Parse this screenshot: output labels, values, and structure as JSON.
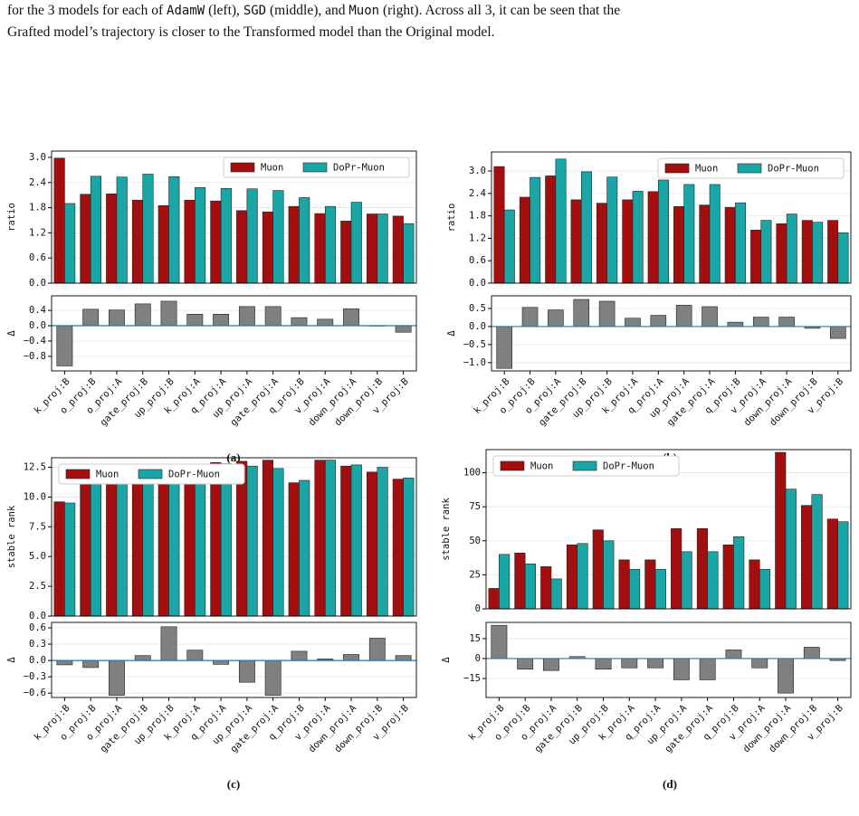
{
  "paragraph": [
    "for the 3 models for each of ",
    "AdamW",
    " (left), ",
    "SGD",
    " (middle), and ",
    "Muon",
    " (right). Across all 3, it can be seen that the",
    "Grafted model’s trajectory is closer to the Transformed model than the Original model."
  ],
  "chart_data": [
    {
      "type": "bar",
      "ylabel": "ratio",
      "legend": "upper right",
      "grid": true,
      "series": [
        {
          "name": "Muon",
          "color": "#a30e0e",
          "values": [
            2.98,
            2.12,
            2.13,
            1.98,
            1.85,
            1.98,
            1.96,
            1.73,
            1.7,
            1.83,
            1.66,
            1.48,
            1.65,
            1.6
          ]
        },
        {
          "name": "DoPr-Muon",
          "color": "#1aa6a6",
          "values": [
            1.9,
            2.55,
            2.53,
            2.6,
            2.54,
            2.28,
            2.26,
            2.25,
            2.21,
            2.04,
            1.83,
            1.93,
            1.65,
            1.42
          ]
        }
      ],
      "ylim": [
        0,
        3.15
      ],
      "yticks": [
        {
          "value": 0,
          "label": "0.0"
        },
        0.6,
        1.2,
        1.8,
        2.4,
        {
          "value": 3,
          "label": "3.0"
        }
      ]
    },
    {
      "type": "bar",
      "ylabel": "Δ",
      "caption": "(a)",
      "grid": true,
      "color": "#808080",
      "zero_line_color": "#1f77b4",
      "categories": [
        "k_proj:B",
        "o_proj:B",
        "o_proj:A",
        "gate_proj:B",
        "up_proj:B",
        "k_proj:A",
        "q_proj:A",
        "up_proj:A",
        "gate_proj:A",
        "q_proj:B",
        "v_proj:A",
        "down_proj:A",
        "down_proj:B",
        "v_proj:B"
      ],
      "values": [
        -1.05,
        0.43,
        0.41,
        0.57,
        0.64,
        0.3,
        0.3,
        0.5,
        0.5,
        0.21,
        0.17,
        0.44,
        -0.01,
        -0.17
      ],
      "ylim": [
        -1.18,
        0.78
      ],
      "yticks": [
        {
          "value": -0.8,
          "label": "−0.8"
        },
        {
          "value": -0.4,
          "label": "−0.4"
        },
        {
          "value": 0,
          "label": "0.0"
        },
        0.4
      ]
    },
    {
      "type": "bar",
      "ylabel": "ratio",
      "legend": "upper right",
      "grid": true,
      "series": [
        {
          "name": "Muon",
          "color": "#a30e0e",
          "values": [
            3.12,
            2.3,
            2.87,
            2.23,
            2.14,
            2.23,
            2.45,
            2.05,
            2.09,
            2.03,
            1.42,
            1.59,
            1.68,
            1.68
          ]
        },
        {
          "name": "DoPr-Muon",
          "color": "#1aa6a6",
          "values": [
            1.96,
            2.83,
            3.32,
            2.98,
            2.84,
            2.46,
            2.76,
            2.64,
            2.64,
            2.15,
            1.68,
            1.85,
            1.63,
            1.35
          ]
        }
      ],
      "ylim": [
        0,
        3.51
      ],
      "yticks": [
        {
          "value": 0,
          "label": "0.0"
        },
        0.6,
        1.2,
        1.8,
        2.4,
        {
          "value": 3,
          "label": "3.0"
        }
      ]
    },
    {
      "type": "bar",
      "ylabel": "Δ",
      "caption": "(b)",
      "grid": true,
      "color": "#808080",
      "zero_line_color": "#1f77b4",
      "categories": [
        "k_proj:B",
        "o_proj:B",
        "o_proj:A",
        "gate_proj:B",
        "up_proj:B",
        "k_proj:A",
        "q_proj:A",
        "up_proj:A",
        "gate_proj:A",
        "q_proj:B",
        "v_proj:A",
        "down_proj:A",
        "down_proj:B",
        "v_proj:B"
      ],
      "values": [
        -1.16,
        0.53,
        0.46,
        0.75,
        0.7,
        0.23,
        0.31,
        0.59,
        0.55,
        0.12,
        0.26,
        0.26,
        -0.05,
        -0.33
      ],
      "ylim": [
        -1.23,
        0.85
      ],
      "yticks": [
        {
          "value": -1,
          "label": "−1.0"
        },
        {
          "value": -0.5,
          "label": "−0.5"
        },
        {
          "value": 0,
          "label": "0.0"
        },
        0.5
      ]
    },
    {
      "type": "bar",
      "ylabel": "stable rank",
      "legend": "upper left",
      "grid": true,
      "series": [
        {
          "name": "Muon",
          "color": "#a30e0e",
          "values": [
            9.6,
            11.9,
            12.7,
            12.0,
            12.0,
            12.5,
            12.9,
            13.0,
            13.1,
            11.2,
            13.1,
            12.6,
            12.1,
            11.5
          ]
        },
        {
          "name": "DoPr-Muon",
          "color": "#1aa6a6",
          "values": [
            9.5,
            11.8,
            12.0,
            12.1,
            12.6,
            12.7,
            12.8,
            12.6,
            12.4,
            11.4,
            13.1,
            12.7,
            12.5,
            11.6
          ]
        }
      ],
      "ylim": [
        0,
        13.3
      ],
      "yticks": [
        {
          "value": 0,
          "label": "0.0"
        },
        2.5,
        {
          "value": 5,
          "label": "5.0"
        },
        7.5,
        {
          "value": 10,
          "label": "10.0"
        },
        12.5
      ]
    },
    {
      "type": "bar",
      "ylabel": "Δ",
      "caption": "(c)",
      "grid": true,
      "color": "#808080",
      "zero_line_color": "#1f77b4",
      "categories": [
        "k_proj:B",
        "o_proj:B",
        "o_proj:A",
        "gate_proj:B",
        "up_proj:B",
        "k_proj:A",
        "q_proj:A",
        "up_proj:A",
        "gate_proj:A",
        "q_proj:B",
        "v_proj:A",
        "down_proj:A",
        "down_proj:B",
        "v_proj:B"
      ],
      "values": [
        -0.08,
        -0.13,
        -0.64,
        0.09,
        0.62,
        0.19,
        -0.07,
        -0.4,
        -0.64,
        0.17,
        0.03,
        0.11,
        0.41,
        0.09
      ],
      "ylim": [
        -0.68,
        0.7
      ],
      "yticks": [
        {
          "value": -0.6,
          "label": "−0.6"
        },
        {
          "value": -0.3,
          "label": "−0.3"
        },
        {
          "value": 0,
          "label": "0.0"
        },
        0.3,
        0.6
      ]
    },
    {
      "type": "bar",
      "ylabel": "stable rank",
      "legend": "upper left",
      "grid": true,
      "series": [
        {
          "name": "Muon",
          "color": "#a30e0e",
          "values": [
            15,
            41,
            31,
            47,
            58,
            36,
            36,
            59,
            59,
            47,
            36,
            115,
            76,
            66
          ]
        },
        {
          "name": "DoPr-Muon",
          "color": "#1aa6a6",
          "values": [
            40,
            33,
            22,
            48,
            50,
            29,
            29,
            42,
            42,
            53,
            29,
            88,
            84,
            64
          ]
        }
      ],
      "ylim": [
        0,
        117
      ],
      "yticks": [
        0,
        25,
        50,
        75,
        100
      ]
    },
    {
      "type": "bar",
      "ylabel": "Δ",
      "caption": "(d)",
      "grid": true,
      "color": "#808080",
      "zero_line_color": "#1f77b4",
      "categories": [
        "k_proj:B",
        "o_proj:B",
        "o_proj:A",
        "gate_proj:B",
        "up_proj:B",
        "k_proj:A",
        "q_proj:A",
        "up_proj:A",
        "gate_proj:A",
        "q_proj:B",
        "v_proj:A",
        "down_proj:A",
        "down_proj:B",
        "v_proj:B"
      ],
      "values": [
        25,
        -8,
        -9,
        1.5,
        -8,
        -7,
        -7,
        -16,
        -16,
        6.5,
        -7,
        -26,
        8.5,
        -1.5
      ],
      "ylim": [
        -29.3,
        27.2
      ],
      "yticks": [
        {
          "value": -15,
          "label": "−15"
        },
        0,
        15
      ]
    }
  ]
}
